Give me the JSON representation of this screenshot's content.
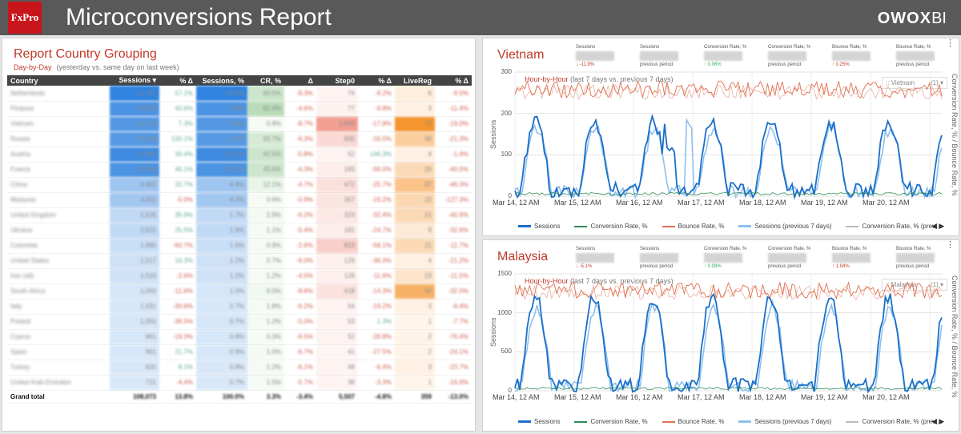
{
  "header": {
    "logo": "FxPro",
    "title": "Microconversions Report",
    "brand": "OWOX",
    "brand_suffix": "BI"
  },
  "report": {
    "title": "Report Country Grouping",
    "subtitle": "Day-by-Day",
    "subtitle_note": "(yesterday vs. same day on last week)",
    "columns": [
      "Country",
      "Sessions ▾",
      "% Δ",
      "Sessions, %",
      "CR, %",
      "Δ",
      "Step0",
      "% Δ",
      "LiveReg",
      "% Δ"
    ],
    "rows": [
      [
        "Netherlands",
        "12,741",
        "57.1%",
        "10.6%",
        "43.5%",
        "-8.3%",
        "74",
        "-9.2%",
        "6",
        "-9.5%"
      ],
      [
        "Pinipore",
        "10,830",
        "43.6%",
        "9.8%",
        "62.4%",
        "-4.6%",
        "77",
        "-9.8%",
        "3",
        "-11.4%"
      ],
      [
        "Vietnam",
        "10,215",
        "7.3%",
        "9.4%",
        "0.8%",
        "-8.7%",
        "1,846",
        "-17.8%",
        "72",
        "-19.0%"
      ],
      [
        "Russia",
        "10,028",
        "130.1%",
        "9.2%",
        "33.7%",
        "-6.3%",
        "605",
        "-16.5%",
        "30",
        "-21.3%"
      ],
      [
        "Austria",
        "11,863",
        "30.4%",
        "10.1%",
        "42.5%",
        "-5.8%",
        "52",
        "146.3%",
        "4",
        "-1.4%"
      ],
      [
        "France",
        "10,894",
        "46.1%",
        "26.7%",
        "43.5%",
        "-4.3%",
        "183",
        "-56.0%",
        "20",
        "-40.0%"
      ],
      [
        "China",
        "4,952",
        "20.7%",
        "4.4%",
        "12.1%",
        "-4.7%",
        "472",
        "-25.7%",
        "37",
        "-46.3%"
      ],
      [
        "Malaysia",
        "4,611",
        "-5.0%",
        "4.3%",
        "0.6%",
        "-0.9%",
        "357",
        "-19.2%",
        "22",
        "-127.3%"
      ],
      [
        "United Kingdom",
        "2,626",
        "35.9%",
        "1.7%",
        "2.9%",
        "-6.2%",
        "323",
        "-32.4%",
        "21",
        "-40.9%"
      ],
      [
        "Ukraine",
        "2,615",
        "25.5%",
        "1.9%",
        "1.1%",
        "-5.4%",
        "181",
        "-24.7%",
        "9",
        "-32.6%"
      ],
      [
        "Colombia",
        "1,880",
        "-60.7%",
        "1.6%",
        "0.9%",
        "-2.6%",
        "823",
        "-58.1%",
        "21",
        "-11.7%"
      ],
      [
        "United States",
        "1,517",
        "16.3%",
        "1.2%",
        "0.7%",
        "-6.0%",
        "129",
        "-36.3%",
        "4",
        "-21.2%"
      ],
      [
        "Iran (all)",
        "1,510",
        "-2.6%",
        "1.2%",
        "1.2%",
        "-4.5%",
        "129",
        "-11.6%",
        "13",
        "-11.5%"
      ],
      [
        "South Africa",
        "1,050",
        "-11.6%",
        "1.0%",
        "6.0%",
        "-8.8%",
        "418",
        "-14.3%",
        "50",
        "-32.0%"
      ],
      [
        "Italy",
        "1,031",
        "-30.6%",
        "0.7%",
        "1.8%",
        "-6.2%",
        "54",
        "-19.2%",
        "3",
        "-6.4%"
      ],
      [
        "Poland",
        "1,055",
        "-36.5%",
        "0.7%",
        "1.2%",
        "-5.0%",
        "53",
        "1.3%",
        "1",
        "-7.7%"
      ],
      [
        "Cyprus",
        "961",
        "-19.3%",
        "0.9%",
        "0.3%",
        "-6.5%",
        "52",
        "-26.8%",
        "2",
        "-76.4%"
      ],
      [
        "Spain",
        "961",
        "21.7%",
        "0.9%",
        "1.0%",
        "-6.7%",
        "41",
        "-27.5%",
        "2",
        "-24.1%"
      ],
      [
        "Turkey",
        "820",
        "8.1%",
        "0.8%",
        "1.2%",
        "-6.1%",
        "48",
        "-6.4%",
        "3",
        "-23.7%"
      ],
      [
        "United Arab Emirates",
        "721",
        "-4.4%",
        "0.7%",
        "1.5%",
        "-5.7%",
        "38",
        "-3.3%",
        "1",
        "-16.9%"
      ]
    ],
    "total": [
      "Grand total",
      "108,073",
      "13.8%",
      "100.0%",
      "3.3%",
      "-3.4%",
      "5,507",
      "-4.8%",
      "359",
      "-13.0%"
    ]
  },
  "panels": [
    {
      "country": "Vietnam",
      "metrics": [
        {
          "label": "Sessions",
          "value": "1,245",
          "delta": "↓ -11.8%",
          "cls": "neg"
        },
        {
          "label": "Sessions",
          "value": "1,412",
          "delta": "previous period",
          "cls": "pp"
        },
        {
          "label": "Conversion Rate, %",
          "value": "0.11%",
          "delta": "↑ 0.06%",
          "cls": "pos"
        },
        {
          "label": "Conversion Rate, %",
          "value": "0.05%",
          "delta": "previous period",
          "cls": "pp"
        },
        {
          "label": "Bounce Rate, %",
          "value": "79.2%",
          "delta": "↑ 0.25%",
          "cls": "neg"
        },
        {
          "label": "Bounce Rate, %",
          "value": "78.9%",
          "delta": "previous period",
          "cls": "pp"
        }
      ],
      "hour_title": "Hour-by-Hour",
      "hour_note": "(last 7 days vs. previous 7 days)",
      "selector": ":: Vietnam",
      "selector_count": "(1) ▾",
      "y_left": "Sessions",
      "y_right": "Conversion Rate, % / Bounce Rate, %",
      "ticks": [
        "300",
        "200",
        "100",
        "0"
      ],
      "x_labels": [
        "Mar 14, 12 AM",
        "Mar 15, 12 AM",
        "Mar 16, 12 AM",
        "Mar 17, 12 AM",
        "Mar 18, 12 AM",
        "Mar 19, 12 AM",
        "Mar 20, 12 AM"
      ]
    },
    {
      "country": "Malaysia",
      "metrics": [
        {
          "label": "Sessions",
          "value": "532",
          "delta": "↓ -5.1%",
          "cls": "neg"
        },
        {
          "label": "Sessions",
          "value": "561",
          "delta": "previous period",
          "cls": "pp"
        },
        {
          "label": "Conversion Rate, %",
          "value": "0.09%",
          "delta": "↑ 0.08%",
          "cls": "pos"
        },
        {
          "label": "Conversion Rate, %",
          "value": "0.01%",
          "delta": "previous period",
          "cls": "pp"
        },
        {
          "label": "Bounce Rate, %",
          "value": "71.4%",
          "delta": "↑ 1.94%",
          "cls": "neg"
        },
        {
          "label": "Bounce Rate, %",
          "value": "69.4%",
          "delta": "previous period",
          "cls": "pp"
        }
      ],
      "hour_title": "Hour-by-Hour",
      "hour_note": "(last 7 days vs. previous 7 days)",
      "selector": ":: Malaysia",
      "selector_count": "(1) ▾",
      "y_left": "Sessions",
      "y_right": "Conversion Rate, % / Bounce Rate, %",
      "ticks": [
        "1500",
        "1000",
        "500",
        "0"
      ],
      "x_labels": [
        "Mar 14, 12 AM",
        "Mar 15, 12 AM",
        "Mar 16, 12 AM",
        "Mar 17, 12 AM",
        "Mar 18, 12 AM",
        "Mar 19, 12 AM",
        "Mar 20, 12 AM"
      ]
    }
  ],
  "legend": [
    "Sessions",
    "Conversion Rate, %",
    "Bounce Rate, %",
    "Sessions (previous 7 days)",
    "Conversion Rate, % (previ..."
  ],
  "pager": "◀ ▶",
  "colors": {
    "sessions": "#1a6fc9",
    "conversion": "#2e8b57",
    "bounce": "#e07050",
    "sessions_prev": "#8fbfef",
    "conversion_prev": "#bbbbbb",
    "accent": "#c0392b"
  }
}
